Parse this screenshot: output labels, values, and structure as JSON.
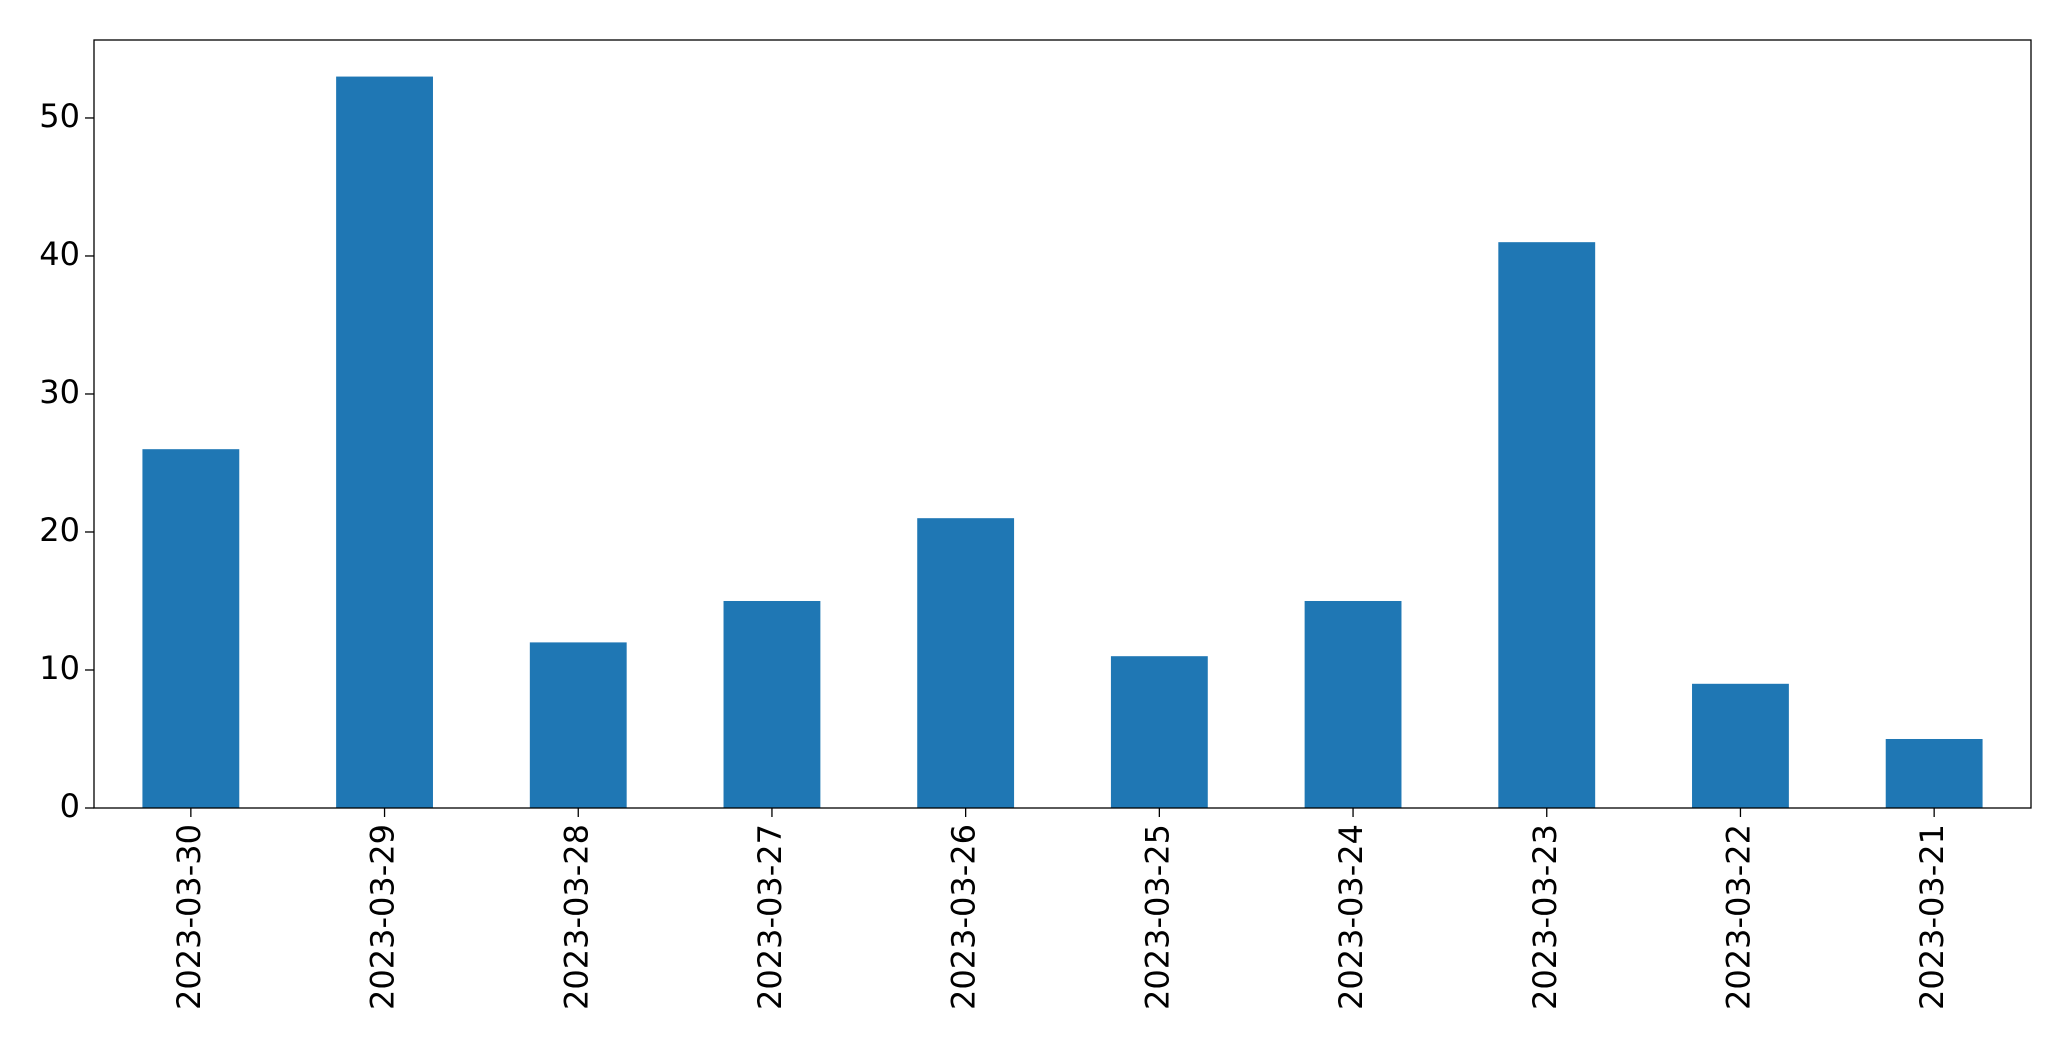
{
  "chart_data": {
    "type": "bar",
    "categories": [
      "2023-03-30",
      "2023-03-29",
      "2023-03-28",
      "2023-03-27",
      "2023-03-26",
      "2023-03-25",
      "2023-03-24",
      "2023-03-23",
      "2023-03-22",
      "2023-03-21"
    ],
    "values": [
      26,
      53,
      12,
      15,
      21,
      11,
      15,
      41,
      9,
      5
    ],
    "color": "#1f77b4",
    "ylim": [
      0,
      55.65
    ],
    "yticks": [
      0,
      10,
      20,
      30,
      40,
      50
    ],
    "grid": false
  }
}
